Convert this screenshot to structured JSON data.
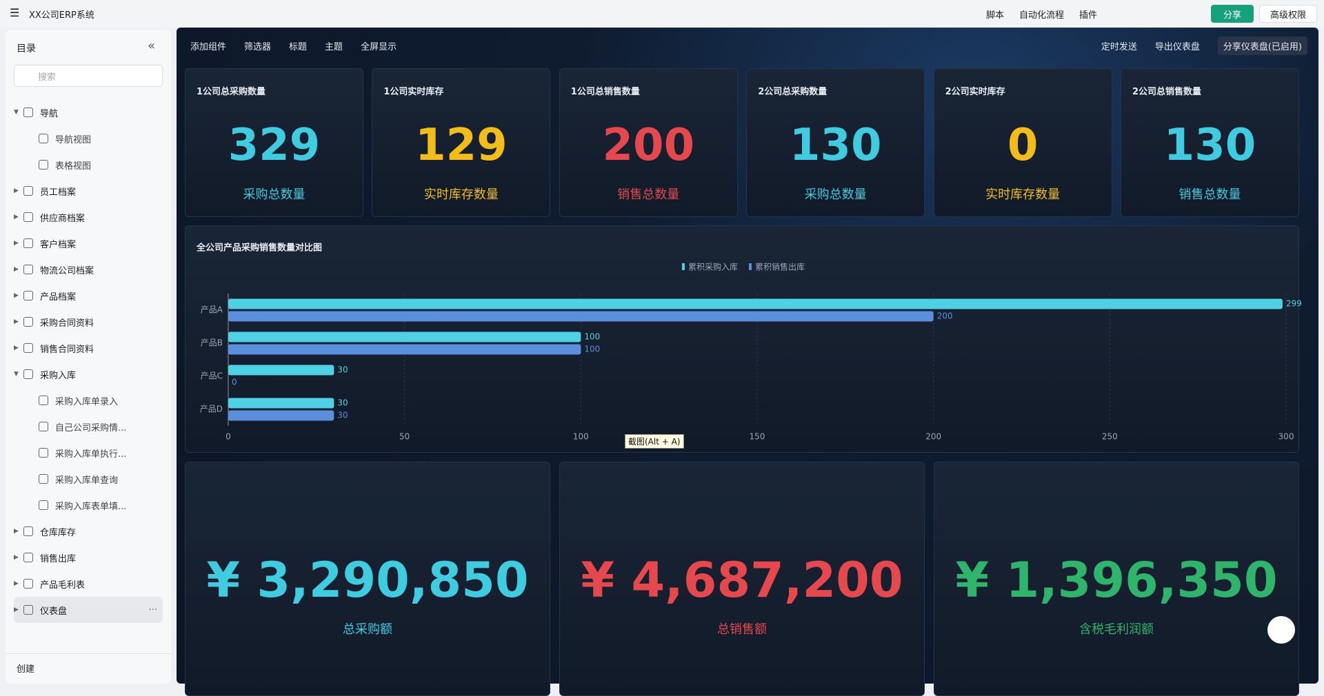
{
  "header": {
    "title": "XX公司ERP系统",
    "actions": [
      "脚本",
      "自动化流程",
      "插件"
    ],
    "share": "分享",
    "permissions": "高级权限"
  },
  "sidebar": {
    "title": "目录",
    "search_placeholder": "搜索",
    "items": [
      {
        "label": "导航",
        "expanded": true,
        "children": [
          "导航视图",
          "表格视图"
        ]
      },
      {
        "label": "员工档案"
      },
      {
        "label": "供应商档案"
      },
      {
        "label": "客户档案"
      },
      {
        "label": "物流公司档案"
      },
      {
        "label": "产品档案"
      },
      {
        "label": "采购合同资料"
      },
      {
        "label": "销售合同资料"
      },
      {
        "label": "采购入库",
        "expanded": true,
        "children": [
          "采购入库单录入",
          "自己公司采购情...",
          "采购入库单执行...",
          "采购入库单查询",
          "采购入库表单填..."
        ]
      },
      {
        "label": "仓库库存"
      },
      {
        "label": "销售出库"
      },
      {
        "label": "产品毛利表"
      },
      {
        "label": "仪表盘",
        "selected": true
      }
    ],
    "footer": "创建"
  },
  "dashboard": {
    "toolbar_left": [
      "添加组件",
      "筛选器",
      "标题",
      "主题",
      "全屏显示"
    ],
    "toolbar_right": [
      "定时发送",
      "导出仪表盘",
      "分享仪表盘(已启用)"
    ],
    "kpis": [
      {
        "title": "1公司总采购数量",
        "value": 329,
        "caption": "采购总数量",
        "color": "#3fcbe0"
      },
      {
        "title": "1公司实时库存",
        "value": 129,
        "caption": "实时库存数量",
        "color": "#f2bd18"
      },
      {
        "title": "1公司总销售数量",
        "value": 200,
        "caption": "销售总数量",
        "color": "#e5484d"
      },
      {
        "title": "2公司总采购数量",
        "value": 130,
        "caption": "采购总数量",
        "color": "#3fcbe0"
      },
      {
        "title": "2公司实时库存",
        "value": 0,
        "caption": "实时库存数量",
        "color": "#f2bd18"
      },
      {
        "title": "2公司总销售数量",
        "value": 130,
        "caption": "销售总数量",
        "color": "#3fcbe0"
      }
    ],
    "totals": [
      {
        "value": "¥ 3,290,850",
        "caption": "总采购额",
        "color": "#3fcbe0"
      },
      {
        "value": "¥ 4,687,200",
        "caption": "总销售额",
        "color": "#e5484d"
      },
      {
        "value": "¥ 1,396,350",
        "caption": "含税毛利润额",
        "color": "#2fb56b"
      }
    ],
    "tooltip": "截图(Alt + A)"
  },
  "chart_data": {
    "type": "bar",
    "orientation": "horizontal",
    "title": "全公司产品采购销售数量对比图",
    "categories": [
      "产品A",
      "产品B",
      "产品C",
      "产品D"
    ],
    "series": [
      {
        "name": "累积采购入库",
        "color": "#4fd1e4",
        "values": [
          299,
          100,
          30,
          30
        ]
      },
      {
        "name": "累积销售出库",
        "color": "#5b8fdc",
        "values": [
          200,
          100,
          0,
          30
        ]
      }
    ],
    "xlim": [
      0,
      300
    ],
    "xticks": [
      0,
      50,
      100,
      150,
      200,
      250,
      300
    ],
    "grid": true
  }
}
